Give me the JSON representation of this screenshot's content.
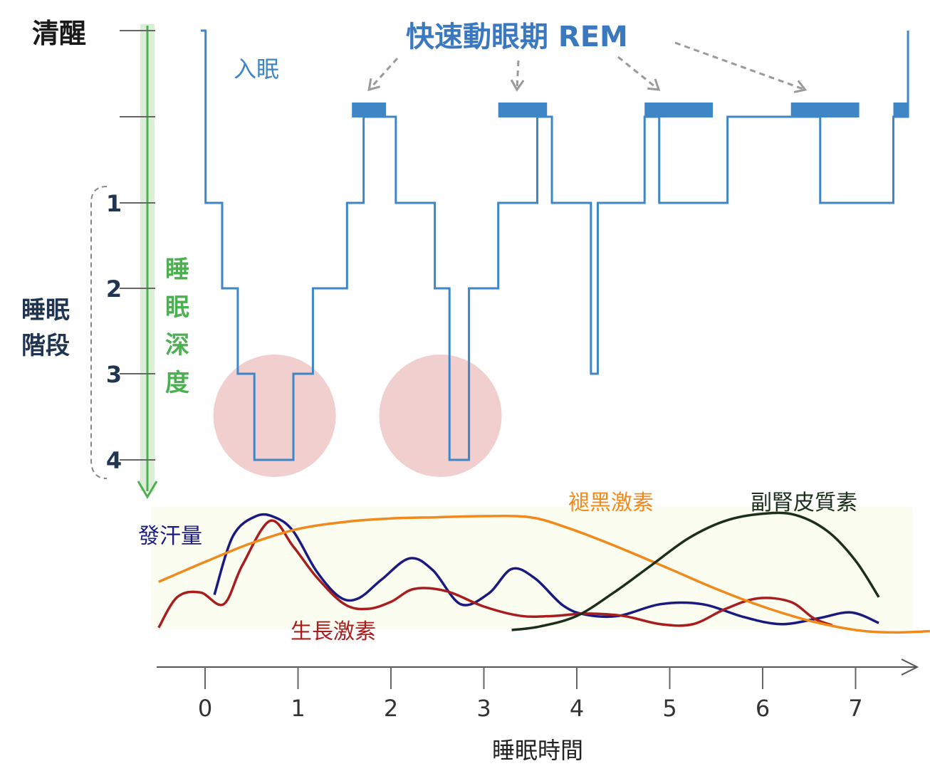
{
  "colors": {
    "hypnogram": "#3f86c6",
    "depth_arrow": "#4caf50",
    "depth_arrow_shade": "#dbefd8",
    "deep_sleep_circle": "#f2cfcf",
    "axis": "#555555",
    "stage_label": "#1f3552",
    "rem_label": "#3a78c0",
    "sweat": "#1a1a80",
    "growth_hormone": "#a81e1e",
    "melatonin": "#f08a1c",
    "cortisol": "#1c2e1c",
    "background_band": "#fbfdf0"
  },
  "labels": {
    "awake": "清醒",
    "sleep_onset": "入眠",
    "rem_title": "快速動眼期 REM",
    "sleep_stage_axis": [
      "睡眠",
      "階段"
    ],
    "sleep_depth_axis": [
      "睡",
      "眠",
      "深",
      "度"
    ],
    "x_axis_title": "睡眠時間"
  },
  "chart_data": [
    {
      "type": "line",
      "title": "",
      "ylabel": "睡眠階段",
      "y_categories": [
        "清醒",
        "REM",
        "1",
        "2",
        "3",
        "4"
      ],
      "y_tick_labels": [
        "1",
        "2",
        "3",
        "4"
      ],
      "series": [
        {
          "name": "",
          "style": "step",
          "x": [
            0.05,
            0.1,
            0.27,
            0.43,
            0.6,
            1.0,
            1.2,
            1.55,
            1.72,
            2.05,
            2.45,
            2.6,
            2.8,
            3.1,
            3.5,
            3.65,
            4.05,
            4.12,
            4.6,
            4.75,
            5.45,
            6.4,
            7.15,
            7.3
          ],
          "y_level": [
            0,
            2,
            3,
            4,
            5,
            4,
            3,
            2,
            1,
            2,
            3,
            5,
            3,
            2,
            1,
            2,
            4,
            2,
            1,
            2,
            1,
            2,
            1,
            0
          ]
        }
      ],
      "rem_periods": [
        [
          1.6,
          1.95
        ],
        [
          3.1,
          3.6
        ],
        [
          4.6,
          5.3
        ],
        [
          6.1,
          6.8
        ],
        [
          7.15,
          7.3
        ]
      ],
      "deep_sleep_highlights": [
        0.8,
        2.5
      ]
    },
    {
      "type": "line",
      "title": "",
      "xlabel": "睡眠時間",
      "x_ticks": [
        0,
        1,
        2,
        3,
        4,
        5,
        6,
        7
      ],
      "xlim": [
        -0.5,
        7.8
      ],
      "y_relative_range": [
        0,
        1
      ],
      "series": [
        {
          "name": "發汗量",
          "x": [
            0.1,
            0.3,
            0.55,
            0.75,
            0.95,
            1.2,
            1.45,
            1.65,
            1.9,
            2.2,
            2.45,
            2.75,
            3.05,
            3.3,
            3.55,
            3.85,
            4.1,
            4.45,
            4.9,
            5.35,
            5.8,
            6.2,
            6.6,
            6.95,
            7.25
          ],
          "values": [
            0.3,
            0.8,
            0.97,
            0.96,
            0.84,
            0.5,
            0.28,
            0.27,
            0.43,
            0.61,
            0.51,
            0.22,
            0.31,
            0.52,
            0.44,
            0.21,
            0.13,
            0.12,
            0.22,
            0.22,
            0.11,
            0.05,
            0.1,
            0.15,
            0.06
          ]
        },
        {
          "name": "生長激素",
          "x": [
            -0.5,
            -0.3,
            -0.05,
            0.2,
            0.4,
            0.7,
            0.95,
            1.2,
            1.5,
            1.75,
            2.0,
            2.25,
            2.6,
            3.0,
            3.4,
            3.75,
            4.1,
            4.5,
            4.9,
            5.25,
            5.6,
            5.95,
            6.3,
            6.55,
            6.75
          ],
          "values": [
            0.02,
            0.28,
            0.32,
            0.22,
            0.55,
            0.93,
            0.71,
            0.45,
            0.22,
            0.18,
            0.24,
            0.35,
            0.33,
            0.2,
            0.12,
            0.12,
            0.14,
            0.12,
            0.05,
            0.05,
            0.18,
            0.27,
            0.24,
            0.1,
            0.04
          ]
        },
        {
          "name": "褪黑激素",
          "x": [
            -0.5,
            0.0,
            0.5,
            1.0,
            1.5,
            2.0,
            2.5,
            3.0,
            3.5,
            3.9,
            4.4,
            5.0,
            5.5,
            6.0,
            6.5,
            7.0,
            7.4,
            7.8
          ],
          "values": [
            0.41,
            0.58,
            0.74,
            0.86,
            0.92,
            0.95,
            0.96,
            0.97,
            0.96,
            0.87,
            0.72,
            0.52,
            0.35,
            0.2,
            0.08,
            0.0,
            -0.02,
            -0.01
          ]
        },
        {
          "name": "副腎皮質素",
          "x": [
            3.3,
            3.6,
            4.0,
            4.4,
            4.8,
            5.2,
            5.6,
            6.0,
            6.35,
            6.7,
            7.0,
            7.25
          ],
          "values": [
            0.0,
            0.03,
            0.12,
            0.32,
            0.55,
            0.78,
            0.93,
            0.99,
            0.98,
            0.84,
            0.59,
            0.28
          ]
        }
      ]
    }
  ]
}
